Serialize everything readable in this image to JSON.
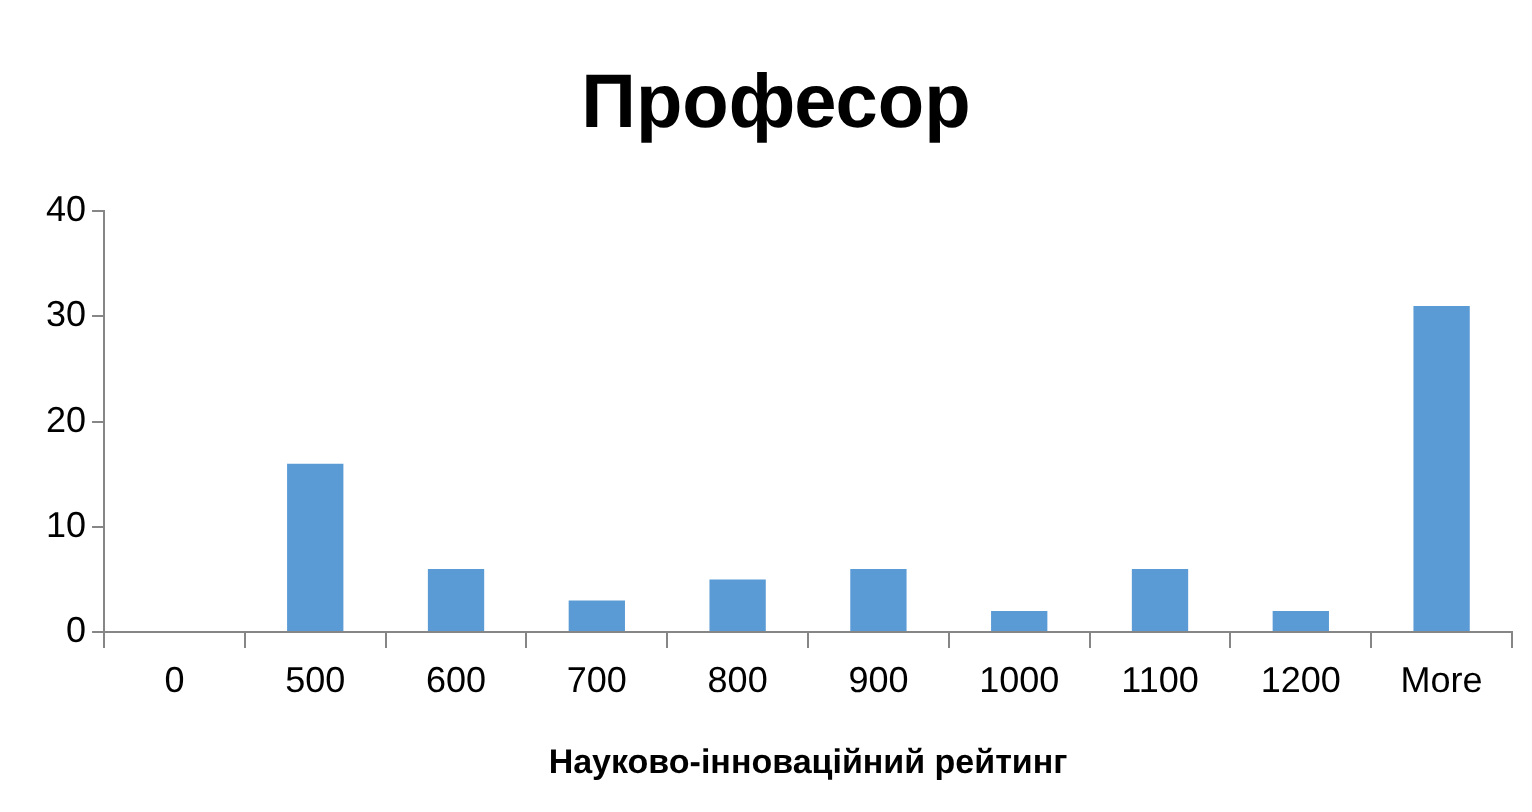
{
  "chart_data": {
    "type": "bar",
    "title": "Професор",
    "xlabel": "Науково-інноваційний рейтинг",
    "categories": [
      "0",
      "500",
      "600",
      "700",
      "800",
      "900",
      "1000",
      "1100",
      "1200",
      "More"
    ],
    "values": [
      0,
      16,
      6,
      3,
      5,
      6,
      2,
      6,
      2,
      31
    ],
    "color": "#5b9bd5",
    "ylim": [
      0,
      40
    ],
    "yticks": [
      0,
      10,
      20,
      30,
      40
    ],
    "grid": false,
    "legend": false
  }
}
